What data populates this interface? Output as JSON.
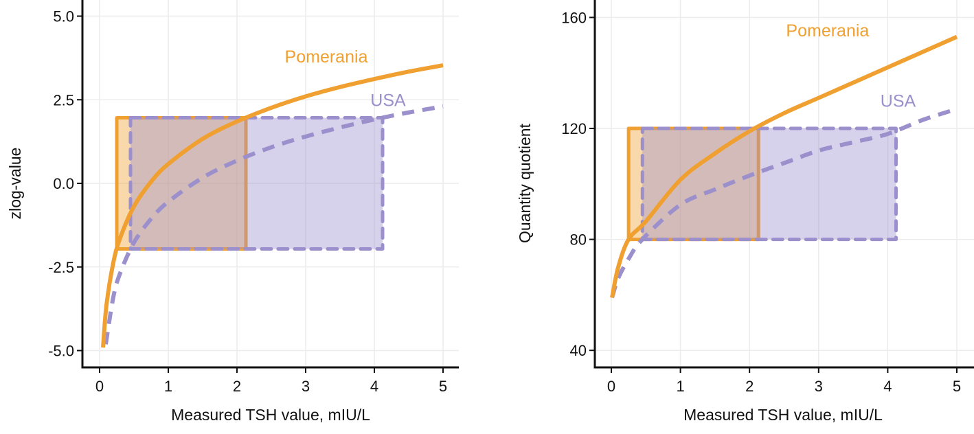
{
  "colors": {
    "Pomerania": "#f0a030",
    "USA": "#9b8fcc",
    "grid": "#ececec",
    "axis": "#111111"
  },
  "chart_data": [
    {
      "type": "line",
      "xlabel": "Measured TSH value, mIU/L",
      "ylabel": "zlog-value",
      "xlim": [
        -0.25,
        5.23
      ],
      "ylim": [
        -5.5,
        5.5
      ],
      "xticks": [
        "0",
        "1",
        "2",
        "3",
        "4",
        "5"
      ],
      "xtick_values": [
        0,
        1,
        2,
        3,
        4,
        5
      ],
      "yticks": [
        "5.0",
        "2.5",
        "0.0",
        "-2.5",
        "-5.0"
      ],
      "ytick_values": [
        5,
        2.5,
        0,
        -2.5,
        -5
      ],
      "grid": true,
      "series": [
        {
          "name": "Pomerania",
          "style": "solid",
          "x": [
            0.05,
            0.1,
            0.2,
            0.3,
            0.5,
            0.75,
            1,
            1.5,
            2,
            2.5,
            3,
            3.5,
            4,
            4.5,
            5
          ],
          "y": [
            -4.91,
            -3.64,
            -2.37,
            -1.63,
            -0.69,
            0.05,
            0.58,
            1.33,
            1.85,
            2.26,
            2.6,
            2.88,
            3.12,
            3.34,
            3.53
          ],
          "reference_interval": {
            "x": [
              0.25,
              2.13
            ],
            "y": [
              -1.96,
              1.96
            ]
          },
          "label_at": [
            3.3,
            3.8
          ]
        },
        {
          "name": "USA",
          "style": "dashed",
          "x": [
            0.09,
            0.2,
            0.3,
            0.5,
            0.75,
            1,
            1.5,
            2,
            2.5,
            3,
            3.5,
            4,
            4.5,
            5
          ],
          "y": [
            -4.81,
            -3.4,
            -2.68,
            -1.77,
            -1.06,
            -0.55,
            0.17,
            0.68,
            1.08,
            1.4,
            1.67,
            1.91,
            2.12,
            2.3
          ],
          "reference_interval": {
            "x": [
              0.45,
              4.12
            ],
            "y": [
              -1.96,
              1.96
            ]
          },
          "label_at": [
            4.2,
            2.5
          ]
        }
      ]
    },
    {
      "type": "line",
      "xlabel": "Measured TSH value, mIU/L",
      "ylabel": "Quantity quotient",
      "xlim": [
        -0.25,
        5.27
      ],
      "ylim": [
        33,
        166
      ],
      "xticks": [
        "0",
        "1",
        "2",
        "3",
        "4",
        "5"
      ],
      "xtick_values": [
        0,
        1,
        2,
        3,
        4,
        5
      ],
      "yticks": [
        "160",
        "120",
        "80",
        "40"
      ],
      "ytick_values": [
        160,
        120,
        80,
        40
      ],
      "grid": true,
      "series": [
        {
          "name": "Pomerania",
          "style": "solid",
          "x": [
            0.01,
            0.1,
            0.25,
            0.5,
            1,
            1.5,
            2,
            2.5,
            3,
            3.5,
            4,
            4.5,
            5
          ],
          "y": [
            59,
            70,
            80,
            86.5,
            101.5,
            111,
            119,
            125.5,
            131,
            136.5,
            142,
            147.5,
            153
          ],
          "reference_interval": {
            "x": [
              0.25,
              2.13
            ],
            "y": [
              80,
              120
            ]
          },
          "label_at": [
            3.13,
            155.4
          ]
        },
        {
          "name": "USA",
          "style": "dashed",
          "x": [
            0.01,
            0.1,
            0.25,
            0.45,
            1,
            1.5,
            2,
            2.5,
            3,
            3.5,
            4,
            4.5,
            5
          ],
          "y": [
            59,
            66,
            73,
            80,
            92.5,
            98,
            103,
            107.5,
            112,
            115,
            118,
            123,
            127
          ],
          "reference_interval": {
            "x": [
              0.45,
              4.12
            ],
            "y": [
              80,
              120
            ]
          },
          "label_at": [
            4.15,
            130
          ]
        }
      ]
    }
  ]
}
